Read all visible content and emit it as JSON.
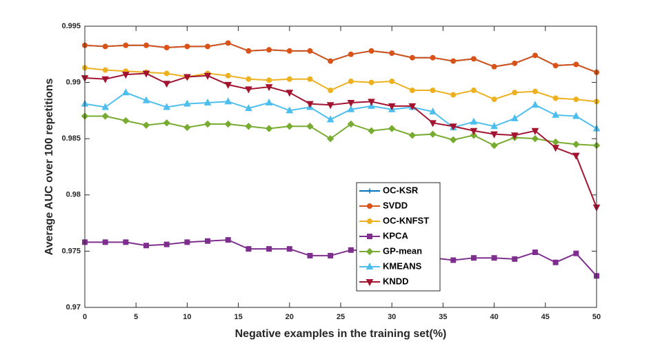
{
  "chart_data": {
    "type": "line",
    "x_label": "Negative examples in the training set(%)",
    "y_label": "Average AUC over 100 repetitions",
    "x": [
      0,
      2,
      4,
      6,
      8,
      10,
      12,
      14,
      16,
      18,
      20,
      22,
      24,
      26,
      28,
      30,
      32,
      34,
      36,
      38,
      40,
      42,
      44,
      46,
      48,
      50
    ],
    "xlim": [
      0,
      50
    ],
    "xticks": [
      0,
      5,
      10,
      15,
      20,
      25,
      30,
      35,
      40,
      45,
      50
    ],
    "ylim": [
      0.97,
      0.995
    ],
    "yticks": [
      0.97,
      0.975,
      0.98,
      0.985,
      0.99,
      0.995
    ],
    "legend": "lower center",
    "series": [
      {
        "name": "OC-KSR",
        "color": "#0072BD",
        "marker": "plus",
        "values": [
          0.9933,
          0.9932,
          0.9933,
          0.9933,
          0.9931,
          0.9932,
          0.9932,
          0.9935,
          0.9928,
          0.9929,
          0.9928,
          0.9928,
          0.9919,
          0.9925,
          0.9928,
          0.9926,
          0.9922,
          0.9922,
          0.9919,
          0.9921,
          0.9914,
          0.9917,
          0.9924,
          0.9915,
          0.9916,
          0.9909
        ]
      },
      {
        "name": "SVDD",
        "color": "#D95319",
        "marker": "circle",
        "values": [
          0.9933,
          0.9932,
          0.9933,
          0.9933,
          0.9931,
          0.9932,
          0.9932,
          0.9935,
          0.9928,
          0.9929,
          0.9928,
          0.9928,
          0.9919,
          0.9925,
          0.9928,
          0.9926,
          0.9922,
          0.9922,
          0.9919,
          0.9921,
          0.9914,
          0.9917,
          0.9924,
          0.9915,
          0.9916,
          0.9909
        ]
      },
      {
        "name": "OC-KNFST",
        "color": "#EDB120",
        "marker": "circle",
        "values": [
          0.9913,
          0.9911,
          0.991,
          0.9909,
          0.9908,
          0.9905,
          0.9908,
          0.9906,
          0.9903,
          0.9902,
          0.9903,
          0.9903,
          0.9893,
          0.9901,
          0.99,
          0.9901,
          0.9893,
          0.9893,
          0.9889,
          0.9893,
          0.9885,
          0.9891,
          0.9892,
          0.9886,
          0.9885,
          0.9883
        ]
      },
      {
        "name": "KPCA",
        "color": "#7E2F8E",
        "marker": "square",
        "values": [
          0.9758,
          0.9758,
          0.9758,
          0.9755,
          0.9756,
          0.9758,
          0.9759,
          0.976,
          0.9752,
          0.9752,
          0.9752,
          0.9746,
          0.9746,
          0.9751,
          0.975,
          0.9748,
          0.9746,
          0.9744,
          0.9742,
          0.9744,
          0.9744,
          0.9743,
          0.9749,
          0.974,
          0.9748,
          0.9728
        ]
      },
      {
        "name": "GP-mean",
        "color": "#77AC30",
        "marker": "diamond",
        "values": [
          0.987,
          0.987,
          0.9866,
          0.9862,
          0.9864,
          0.986,
          0.9863,
          0.9863,
          0.9861,
          0.9859,
          0.9861,
          0.9861,
          0.985,
          0.9863,
          0.9857,
          0.9859,
          0.9853,
          0.9854,
          0.9849,
          0.9853,
          0.9844,
          0.9851,
          0.985,
          0.9847,
          0.9845,
          0.9844
        ]
      },
      {
        "name": "KMEANS",
        "color": "#4DBEEE",
        "marker": "triangle-up",
        "values": [
          0.9881,
          0.9878,
          0.9891,
          0.9884,
          0.9878,
          0.9881,
          0.9882,
          0.9883,
          0.9877,
          0.9882,
          0.9875,
          0.9878,
          0.9867,
          0.9876,
          0.9879,
          0.9876,
          0.9878,
          0.9874,
          0.986,
          0.9865,
          0.9861,
          0.9868,
          0.988,
          0.9871,
          0.987,
          0.9859
        ]
      },
      {
        "name": "KNDD",
        "color": "#A2142F",
        "marker": "triangle-down",
        "values": [
          0.9904,
          0.9903,
          0.9907,
          0.9908,
          0.9899,
          0.9905,
          0.9906,
          0.9898,
          0.9894,
          0.9896,
          0.9891,
          0.9881,
          0.988,
          0.9882,
          0.9883,
          0.9879,
          0.9879,
          0.9864,
          0.9861,
          0.9857,
          0.9854,
          0.9853,
          0.9857,
          0.9842,
          0.9835,
          0.9789
        ]
      }
    ]
  }
}
